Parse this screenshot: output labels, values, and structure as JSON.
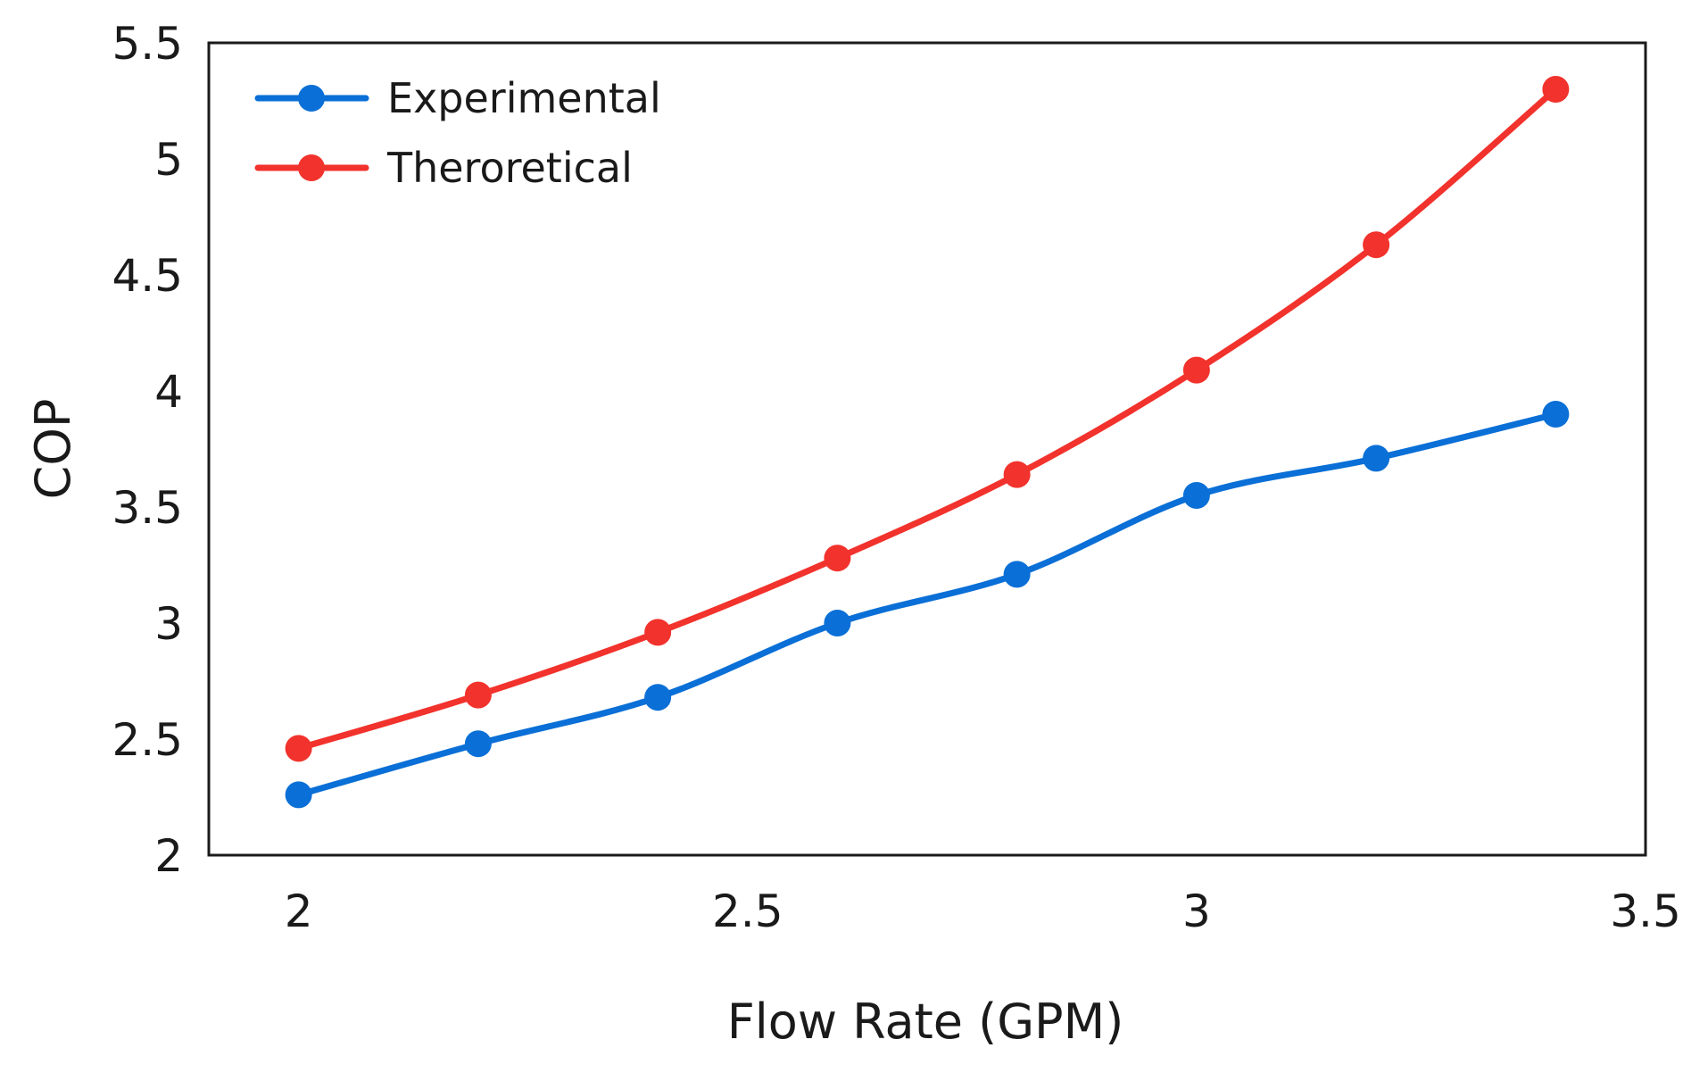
{
  "chart_data": {
    "type": "line",
    "title": "",
    "xlabel": "Flow Rate (GPM)",
    "ylabel": "COP",
    "xlim": [
      1.9,
      3.5
    ],
    "ylim": [
      2,
      5.5
    ],
    "xticks": [
      2,
      2.5,
      3,
      3.5
    ],
    "xtick_labels": [
      "2",
      "2.5",
      "3",
      "3.5"
    ],
    "yticks": [
      2,
      2.5,
      3,
      3.5,
      4,
      4.5,
      5,
      5.5
    ],
    "ytick_labels": [
      "2",
      "2.5",
      "3",
      "3.5",
      "4",
      "4.5",
      "5",
      "5.5"
    ],
    "grid": false,
    "legend_position": "top-left",
    "x": [
      2.0,
      2.2,
      2.4,
      2.6,
      2.8,
      3.0,
      3.2,
      3.4
    ],
    "series": [
      {
        "name": "Experimental",
        "color": "#0a6fd6",
        "values": [
          2.26,
          2.48,
          2.68,
          3.0,
          3.21,
          3.55,
          3.71,
          3.9
        ]
      },
      {
        "name": "Theroretical",
        "color": "#f2322c",
        "values": [
          2.46,
          2.69,
          2.96,
          3.28,
          3.64,
          4.09,
          4.63,
          5.3
        ]
      }
    ]
  }
}
